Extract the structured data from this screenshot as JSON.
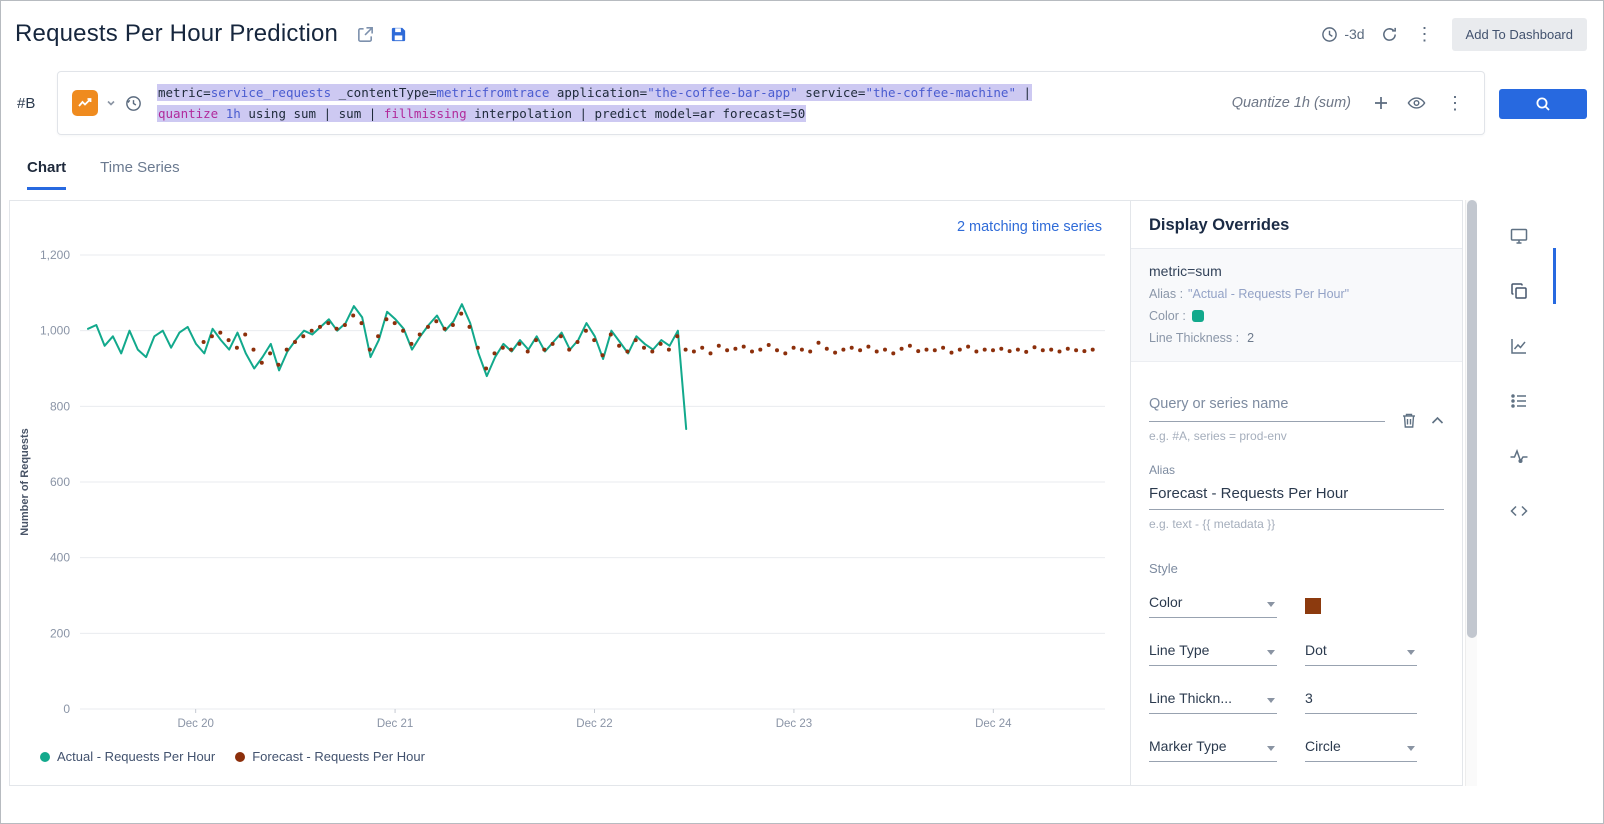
{
  "colors": {
    "accent": "#2769e0",
    "actual": "#12a98c",
    "forecast": "#8c2f0b"
  },
  "header": {
    "title": "Requests Per Hour Prediction",
    "time_range": "-3d",
    "add_to_dashboard": "Add To Dashboard"
  },
  "query": {
    "ref": "#B",
    "quantize_label": "Quantize 1h (sum)",
    "lines": [
      [
        {
          "t": "metric=",
          "c": "plain"
        },
        {
          "t": "service_requests",
          "c": "blue"
        },
        {
          "t": " _contentType=",
          "c": "plain"
        },
        {
          "t": "metricfromtrace",
          "c": "blue"
        },
        {
          "t": " application=",
          "c": "plain"
        },
        {
          "t": "\"the-coffee-bar-app\"",
          "c": "blue"
        },
        {
          "t": " service=",
          "c": "plain"
        },
        {
          "t": "\"the-coffee-machine\"",
          "c": "blue"
        },
        {
          "t": " |",
          "c": "plain"
        }
      ],
      [
        {
          "t": "quantize",
          "c": "magenta"
        },
        {
          "t": " ",
          "c": "plain"
        },
        {
          "t": "1h",
          "c": "blue"
        },
        {
          "t": " using sum  | sum | ",
          "c": "plain"
        },
        {
          "t": "fillmissing",
          "c": "magenta"
        },
        {
          "t": " interpolation | predict model=ar forecast=50",
          "c": "plain"
        }
      ]
    ]
  },
  "tabs": [
    {
      "label": "Chart"
    },
    {
      "label": "Time Series"
    }
  ],
  "chart_data": {
    "type": "line",
    "matching_label": "2 matching time series",
    "ylabel": "Number of Requests",
    "ylim": [
      0,
      1200
    ],
    "yticks": [
      0,
      200,
      400,
      600,
      800,
      1000,
      1200
    ],
    "ytick_labels": [
      "0",
      "200",
      "400",
      "600",
      "800",
      "1,000",
      "1,200"
    ],
    "xlim": [
      19.42,
      24.56
    ],
    "xticks": [
      20,
      21,
      22,
      23,
      24
    ],
    "xtick_labels": [
      "Dec 20",
      "Dec 21",
      "Dec 22",
      "Dec 23",
      "Dec 24"
    ],
    "grid": true,
    "legend_position": "bottom",
    "series": [
      {
        "name": "Actual - Requests Per Hour",
        "color": "#12a98c",
        "style": "line",
        "x_start": 19.46,
        "x_step": 0.0416667,
        "values": [
          1005,
          1015,
          960,
          985,
          940,
          1000,
          950,
          930,
          985,
          1000,
          955,
          995,
          1010,
          965,
          940,
          1005,
          975,
          950,
          995,
          940,
          900,
          930,
          965,
          895,
          945,
          975,
          1000,
          990,
          1010,
          1030,
          1000,
          1020,
          1065,
          1035,
          930,
          975,
          1050,
          1030,
          1005,
          950,
          985,
          1015,
          1040,
          1000,
          1025,
          1070,
          1020,
          940,
          880,
          930,
          965,
          945,
          975,
          950,
          985,
          945,
          970,
          995,
          950,
          975,
          1020,
          985,
          925,
          1000,
          970,
          940,
          985,
          965,
          950,
          975,
          960,
          1000,
          740
        ]
      },
      {
        "name": "Forecast - Requests Per Hour",
        "color": "#8c2f0b",
        "style": "dots",
        "x_start": 20.04,
        "x_step": 0.0416667,
        "values": [
          970,
          985,
          995,
          975,
          955,
          990,
          950,
          915,
          940,
          910,
          950,
          970,
          985,
          1000,
          1010,
          1020,
          1005,
          1015,
          1040,
          1020,
          950,
          985,
          1030,
          1020,
          1000,
          965,
          990,
          1010,
          1025,
          1005,
          1015,
          1045,
          1010,
          955,
          900,
          940,
          955,
          950,
          965,
          945,
          975,
          950,
          965,
          985,
          950,
          970,
          1000,
          975,
          935,
          990,
          960,
          945,
          975,
          955,
          945,
          965,
          950,
          985,
          950,
          945,
          955,
          940,
          960,
          948,
          952,
          958,
          945,
          950,
          962,
          948,
          940,
          955,
          950,
          945,
          968,
          952,
          942,
          950,
          955,
          948,
          958,
          945,
          950,
          940,
          952,
          960,
          946,
          950,
          948,
          955,
          942,
          950,
          958,
          945,
          950,
          948,
          952,
          946,
          950,
          944,
          956,
          948,
          950,
          945,
          952,
          948,
          946,
          950
        ]
      }
    ]
  },
  "legend": [
    {
      "label": "Actual - Requests Per Hour",
      "color": "#12a98c"
    },
    {
      "label": "Forecast - Requests Per Hour",
      "color": "#8c2f0b"
    }
  ],
  "overrides": {
    "title": "Display Overrides",
    "summary": {
      "metric": "metric=sum",
      "alias_label": "Alias :",
      "alias_value": "\"Actual - Requests Per Hour\"",
      "color_label": "Color :",
      "color_swatch": "#12a98c",
      "thickness_label": "Line Thickness :",
      "thickness_value": "2"
    },
    "form": {
      "query_label": "Query or series name",
      "query_placeholder": "e.g. #A, series = prod-env",
      "alias_label": "Alias",
      "alias_value": "Forecast - Requests Per Hour",
      "alias_placeholder": "e.g. text - {{ metadata }}",
      "style_label": "Style",
      "color_label": "Color",
      "color_swatch": "#8c3a0e",
      "line_type_label": "Line Type",
      "line_type_value": "Dot",
      "thickness_label": "Line Thickn...",
      "thickness_value": "3",
      "marker_label": "Marker Type",
      "marker_value": "Circle"
    }
  }
}
